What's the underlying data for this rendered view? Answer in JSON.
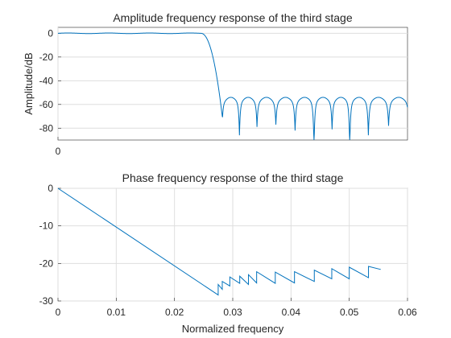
{
  "chart_data": [
    {
      "type": "line",
      "title": "Amplitude frequency response of the third stage",
      "xlabel": "",
      "ylabel": "Amplitude/dB",
      "xlim": [
        0,
        0.06
      ],
      "ylim": [
        -90,
        5
      ],
      "xticks": [
        "0"
      ],
      "yticks": [
        0,
        -20,
        -40,
        -60,
        -80
      ],
      "grid": true,
      "color": "#0072bd",
      "passband_level_db": 0,
      "cutoff_x": 0.0245,
      "stopband_start_x": 0.0282,
      "stopband_end_x": 0.06,
      "stopband_lobe_peak_db": -54,
      "nulls": [
        {
          "x": 0.0282,
          "y": -70
        },
        {
          "x": 0.03115,
          "y": -80
        },
        {
          "x": 0.03416,
          "y": -73
        },
        {
          "x": 0.0374,
          "y": -71
        },
        {
          "x": 0.0407,
          "y": -76
        },
        {
          "x": 0.04395,
          "y": -90
        },
        {
          "x": 0.04705,
          "y": -75
        },
        {
          "x": 0.05008,
          "y": -90
        },
        {
          "x": 0.05328,
          "y": -80
        },
        {
          "x": 0.05675,
          "y": -72
        }
      ]
    },
    {
      "type": "line",
      "title": "Phase frequency response of the third stage",
      "xlabel": "Normalized frequency",
      "ylabel": "",
      "xlim": [
        0,
        0.06
      ],
      "ylim": [
        -30,
        0
      ],
      "xticks": [
        "0",
        "0.01",
        "0.02",
        "0.03",
        "0.04",
        "0.05",
        "0.06"
      ],
      "yticks": [
        0,
        -10,
        -20,
        -30
      ],
      "grid": true,
      "color": "#0072bd",
      "points": [
        [
          0,
          0
        ],
        [
          0.0275,
          -28.4
        ],
        [
          0.0275,
          -25.6
        ],
        [
          0.0282,
          -26.9
        ],
        [
          0.0282,
          -24.8
        ],
        [
          0.0295,
          -26.0
        ],
        [
          0.0295,
          -23.6
        ],
        [
          0.0312,
          -25.3
        ],
        [
          0.0312,
          -23.4
        ],
        [
          0.0327,
          -25.6
        ],
        [
          0.0327,
          -23.0
        ],
        [
          0.0341,
          -25.2
        ],
        [
          0.0341,
          -22.2
        ],
        [
          0.0373,
          -25.3
        ],
        [
          0.0373,
          -22.3
        ],
        [
          0.0406,
          -25.2
        ],
        [
          0.0406,
          -22.2
        ],
        [
          0.044,
          -24.8
        ],
        [
          0.044,
          -21.8
        ],
        [
          0.047,
          -24.1
        ],
        [
          0.047,
          -21.4
        ],
        [
          0.05,
          -24.1
        ],
        [
          0.05,
          -21.0
        ],
        [
          0.0533,
          -23.8
        ],
        [
          0.0533,
          -20.8
        ],
        [
          0.0554,
          -21.6
        ]
      ]
    }
  ]
}
